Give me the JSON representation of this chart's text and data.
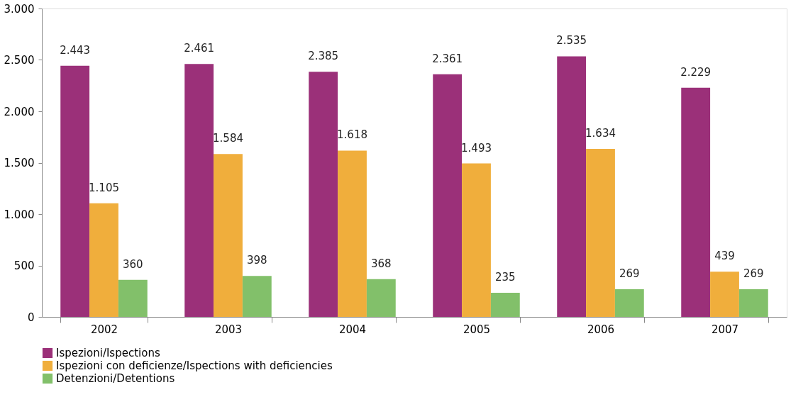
{
  "chart_data": {
    "type": "bar",
    "categories": [
      "2002",
      "2003",
      "2004",
      "2005",
      "2006",
      "2007"
    ],
    "series": [
      {
        "name": "Ispezioni/Ispections",
        "color": "#9b3079",
        "values": [
          2443,
          2461,
          2385,
          2361,
          2535,
          2229
        ],
        "value_labels": [
          "2.443",
          "2.461",
          "2.385",
          "2.361",
          "2.535",
          "2.229"
        ]
      },
      {
        "name": "Ispezioni con deficienze/Ispections with deficiencies",
        "color": "#f0ae3c",
        "values": [
          1105,
          1584,
          1618,
          1493,
          1634,
          439
        ],
        "value_labels": [
          "1.105",
          "1.584",
          "1.618",
          "1.493",
          "1.634",
          "439"
        ]
      },
      {
        "name": "Detenzioni/Detentions",
        "color": "#82c06a",
        "values": [
          360,
          398,
          368,
          235,
          269,
          269
        ],
        "value_labels": [
          "360",
          "398",
          "368",
          "235",
          "269",
          "269"
        ]
      }
    ],
    "ylim": [
      0,
      3000
    ],
    "yticks": [
      0,
      {
        "value": 500,
        "label": "500"
      },
      {
        "value": 1000,
        "label": "1.000"
      },
      {
        "value": 1500,
        "label": "1.500"
      },
      {
        "value": 2000,
        "label": "2.000"
      },
      {
        "value": 2500,
        "label": "2.500"
      },
      {
        "value": 3000,
        "label": "3.000"
      }
    ],
    "grid": false,
    "legend": "bottom"
  }
}
